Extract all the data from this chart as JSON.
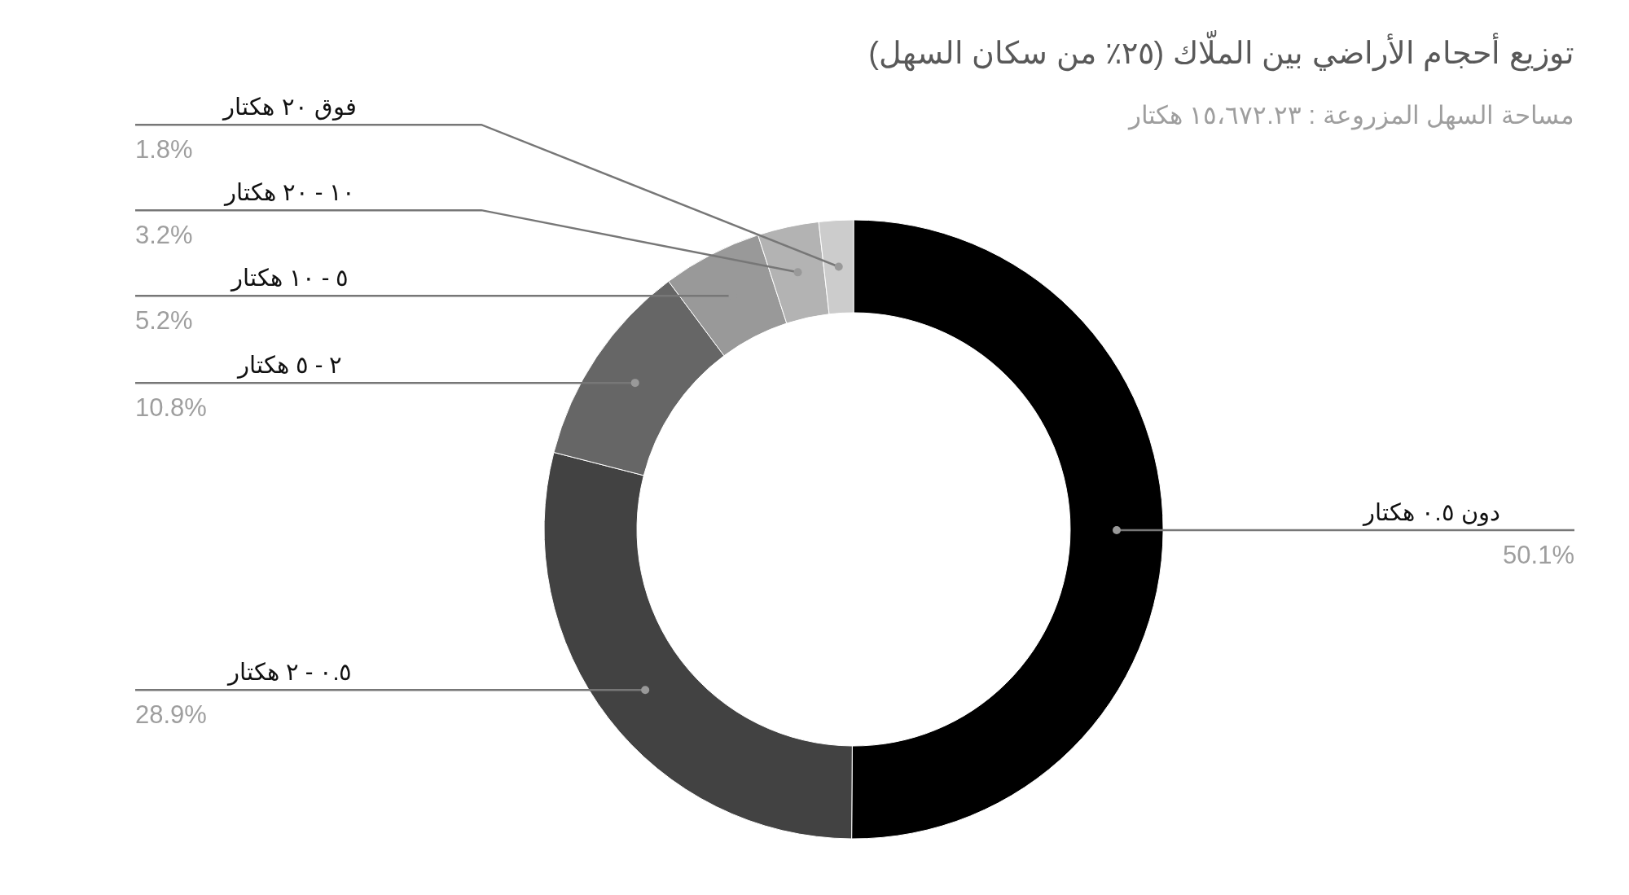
{
  "chart_data": {
    "type": "donut",
    "title": "توزيع أحجام الأراضي بين الملّاك (٢٥٪ من سكان السهل)",
    "subtitle": "مساحة السهل المزروعة : ١٥،٦٧٢.٢٣ هكتار",
    "categories": [
      "دون ٠.٥ هكتار",
      "٠.٥ - ٢ هكتار",
      "٢ - ٥ هكتار",
      "٥ - ١٠ هكتار",
      "١٠ - ٢٠ هكتار",
      "فوق ٢٠ هكتار"
    ],
    "values": [
      50.1,
      28.9,
      10.8,
      5.2,
      3.2,
      1.8
    ],
    "colors": [
      "#000000",
      "#424242",
      "#666666",
      "#999999",
      "#b3b3b3",
      "#cccccc"
    ],
    "value_labels": [
      "50.1%",
      "28.9%",
      "10.8%",
      "5.2%",
      "3.2%",
      "1.8%"
    ]
  }
}
